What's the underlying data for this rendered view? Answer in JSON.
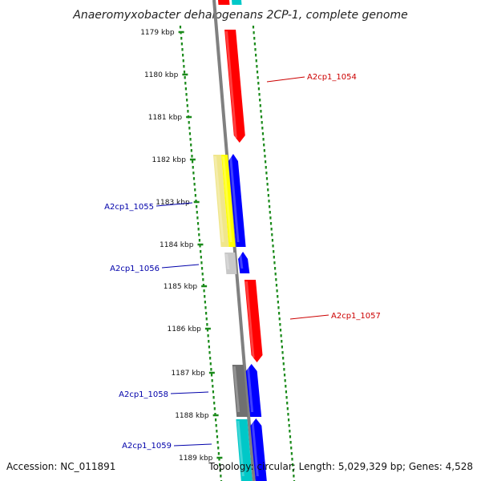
{
  "title": "Anaeromyxobacter dehalogenans 2CP-1, complete genome",
  "footer": {
    "accession": "Accession: NC_011891",
    "summary": "Topology: circular; Length: 5,029,329 bp; Genes: 4,528"
  },
  "ticks": [
    "1179 kbp",
    "1180 kbp",
    "1181 kbp",
    "1182 kbp",
    "1183 kbp",
    "1184 kbp",
    "1185 kbp",
    "1186 kbp",
    "1187 kbp",
    "1188 kbp",
    "1189 kbp"
  ],
  "colors": {
    "forward_gene": "#ff0000",
    "reverse_gene": "#0000ff",
    "label_forward": "#cc0000",
    "label_reverse": "#0000aa",
    "dots": "#1a8a1a",
    "backbone": "#808080",
    "yellow": "#ffff00",
    "pale_yellow": "#f0e68c",
    "light_gray": "#c8c8c8",
    "dark_gray": "#707070",
    "cyan": "#00c8c8"
  },
  "genes": [
    {
      "label": "A2cp1_1054",
      "strand": "forward"
    },
    {
      "label": "A2cp1_1055",
      "strand": "reverse"
    },
    {
      "label": "A2cp1_1056",
      "strand": "reverse"
    },
    {
      "label": "A2cp1_1057",
      "strand": "forward"
    },
    {
      "label": "A2cp1_1058",
      "strand": "reverse"
    },
    {
      "label": "A2cp1_1059",
      "strand": "reverse"
    }
  ]
}
